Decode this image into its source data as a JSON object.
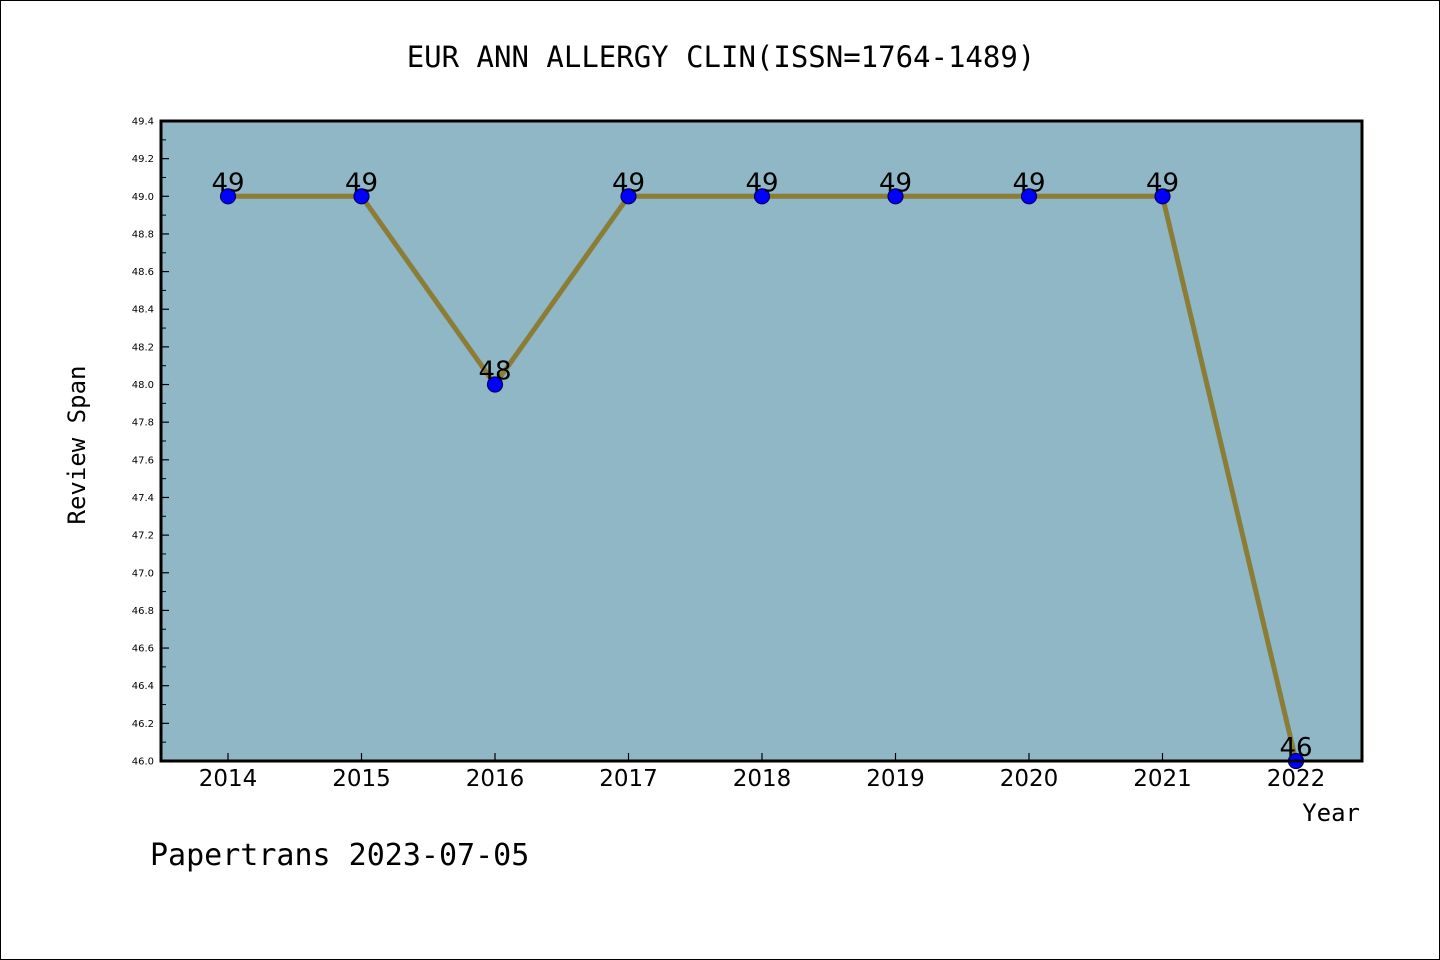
{
  "chart_data": {
    "type": "line",
    "title": "EUR ANN ALLERGY CLIN(ISSN=1764-1489)",
    "xlabel": "Year",
    "ylabel": "Review Span",
    "categories": [
      "2014",
      "2015",
      "2016",
      "2017",
      "2018",
      "2019",
      "2020",
      "2021",
      "2022"
    ],
    "series": [
      {
        "values": [
          49,
          49,
          48,
          49,
          49,
          49,
          49,
          49,
          46
        ],
        "data_labels": [
          "49",
          "49",
          "48",
          "49",
          "49",
          "49",
          "49",
          "49",
          "46"
        ]
      }
    ],
    "ylim": [
      46.0,
      49.4
    ],
    "y_major_ticks": [
      "46.0",
      "46.2",
      "46.4",
      "46.6",
      "46.8",
      "47.0",
      "47.2",
      "47.4",
      "47.6",
      "47.8",
      "48.0",
      "48.2",
      "48.4",
      "48.6",
      "48.8",
      "49.0",
      "49.2",
      "49.4"
    ],
    "y_minor_step": 0.1,
    "grid": false,
    "legend": "none",
    "colors": {
      "plot_background": "#8fb7c5",
      "line": "#8b7d35",
      "marker": "#0000ff",
      "marker_edge": "#000060",
      "axes": "#000000"
    }
  },
  "footer": {
    "watermark": "Papertrans 2023-07-05"
  }
}
